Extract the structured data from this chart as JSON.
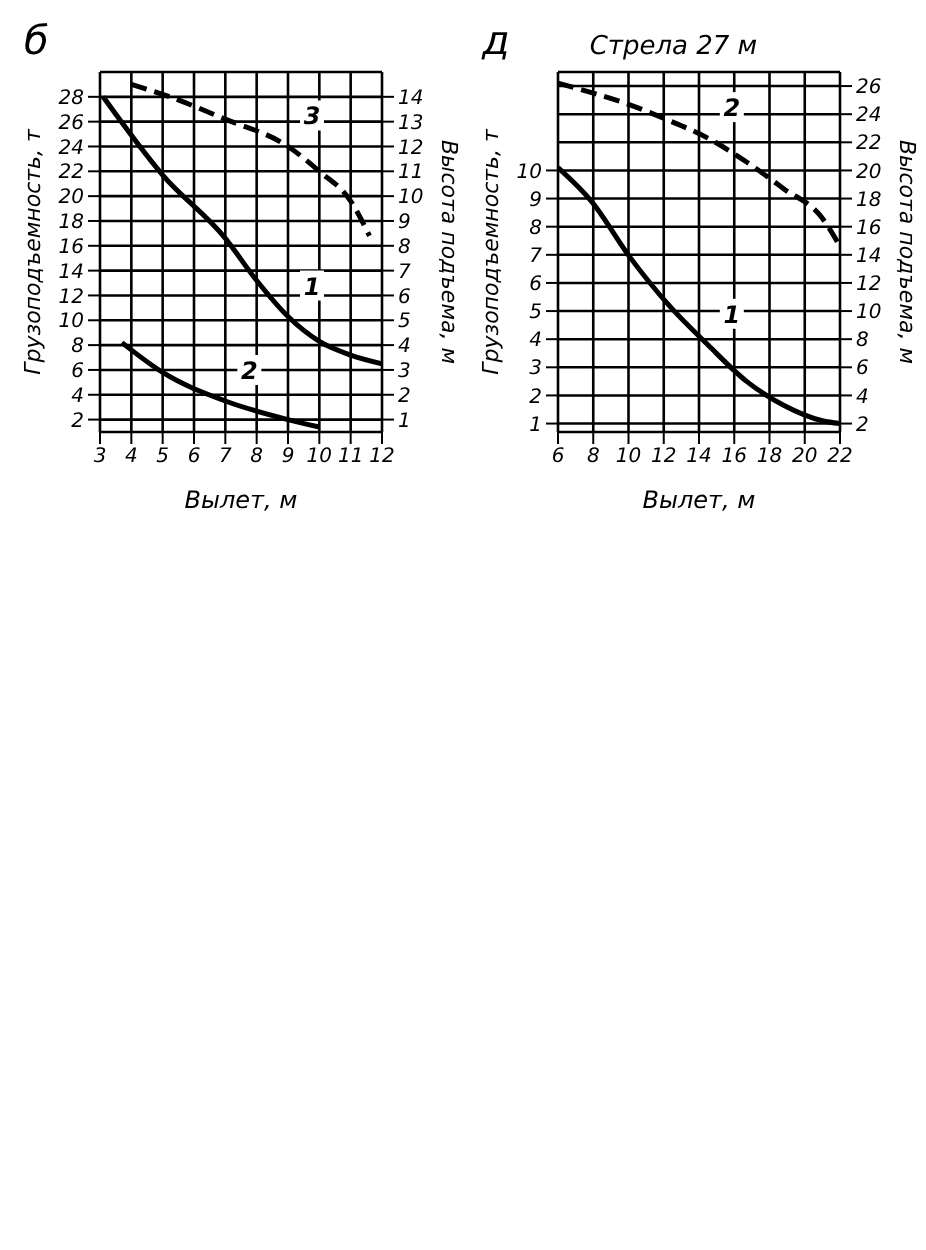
{
  "chart_data": [
    {
      "type": "line",
      "title": "б",
      "xlabel": "Вылет, м",
      "ylabel": "Грузоподъемность, т",
      "y2label": "Высота подъема, м",
      "series": [
        {
          "name": "1",
          "color": "#000000",
          "line_style": "solid",
          "x": [
            3.1,
            5,
            7,
            8,
            9,
            10,
            11,
            12
          ],
          "values": [
            28,
            21.7,
            16.6,
            13.2,
            10.3,
            8.3,
            7.2,
            6.5
          ]
        },
        {
          "name": "2",
          "color": "#000000",
          "line_style": "solid",
          "x": [
            3.7,
            5,
            7,
            9,
            10
          ],
          "values": [
            8.2,
            5.8,
            3.5,
            2,
            1.4
          ]
        },
        {
          "name": "3",
          "color": "#000000",
          "line_style": "dashed",
          "axis": "y2",
          "x": [
            4,
            5,
            7,
            9,
            10,
            11,
            11.6
          ],
          "values": [
            14.5,
            14.1,
            13.1,
            12,
            11,
            9.8,
            8.4
          ]
        }
      ],
      "xlim": [
        3,
        12
      ],
      "xticks": [
        3,
        4,
        5,
        6,
        7,
        8,
        9,
        10,
        11,
        12
      ],
      "ylim": [
        1,
        30
      ],
      "yticks": [
        2,
        4,
        6,
        8,
        10,
        12,
        14,
        16,
        18,
        20,
        22,
        24,
        26,
        28
      ],
      "y2lim": [
        0.5,
        15
      ],
      "y2ticks": [
        1,
        2,
        3,
        4,
        5,
        6,
        7,
        8,
        9,
        10,
        11,
        12,
        13,
        14
      ],
      "grid": true,
      "legend": false
    },
    {
      "type": "line",
      "title": "д",
      "subtitle": "Стрела 27 м",
      "xlabel": "Вылет, м",
      "ylabel": "Грузоподъемность, т",
      "y2label": "Высота подъема, м",
      "series": [
        {
          "name": "1",
          "color": "#000000",
          "line_style": "solid",
          "x": [
            6,
            7.9,
            10.1,
            12.3,
            14.5,
            16.7,
            18.8,
            21,
            22
          ],
          "values": [
            10.1,
            8.9,
            6.9,
            5.2,
            3.8,
            2.5,
            1.65,
            1.1,
            1
          ]
        },
        {
          "name": "2",
          "color": "#000000",
          "line_style": "dashed",
          "axis": "y2",
          "x": [
            6,
            8,
            10,
            12.2,
            14.5,
            16.7,
            18.8,
            21,
            22
          ],
          "values": [
            26.2,
            25.5,
            24.7,
            23.6,
            22.3,
            20.6,
            18.7,
            16.6,
            14.6
          ]
        }
      ],
      "xlim": [
        6,
        22
      ],
      "xticks": [
        6,
        8,
        10,
        12,
        14,
        16,
        18,
        20,
        22
      ],
      "ylim": [
        0.7,
        13.5
      ],
      "yticks": [
        1,
        2,
        3,
        4,
        5,
        6,
        7,
        8,
        9,
        10
      ],
      "y2lim": [
        1.4,
        27
      ],
      "y2ticks": [
        2,
        4,
        6,
        8,
        10,
        12,
        14,
        16,
        18,
        20,
        22,
        24,
        26
      ],
      "grid": true,
      "legend": false
    }
  ]
}
